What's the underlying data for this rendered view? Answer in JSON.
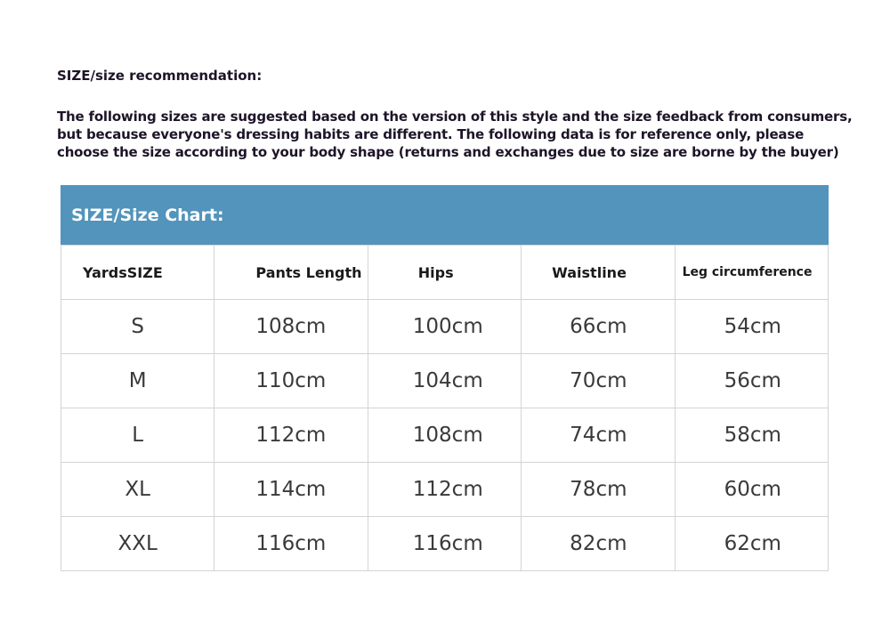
{
  "heading": "SIZE/size recommendation:",
  "intro": "The following sizes are suggested based on the version of this style and the size feedback from consumers, but because everyone's dressing habits are different. The following data is for reference only, please choose the size according to your body shape (returns and exchanges due to size are borne by the buyer)",
  "table": {
    "title": "SIZE/Size Chart:",
    "header_color": "#5294bb",
    "columns": [
      "YardsSIZE",
      "Pants Length",
      "Hips",
      "Waistline",
      "Leg circumference"
    ],
    "rows": [
      [
        "S",
        "108cm",
        "100cm",
        "66cm",
        "54cm"
      ],
      [
        "M",
        "110cm",
        "104cm",
        "70cm",
        "56cm"
      ],
      [
        "L",
        "112cm",
        "108cm",
        "74cm",
        "58cm"
      ],
      [
        "XL",
        "114cm",
        "112cm",
        "78cm",
        "60cm"
      ],
      [
        "XXL",
        "116cm",
        "116cm",
        "82cm",
        "62cm"
      ]
    ]
  }
}
